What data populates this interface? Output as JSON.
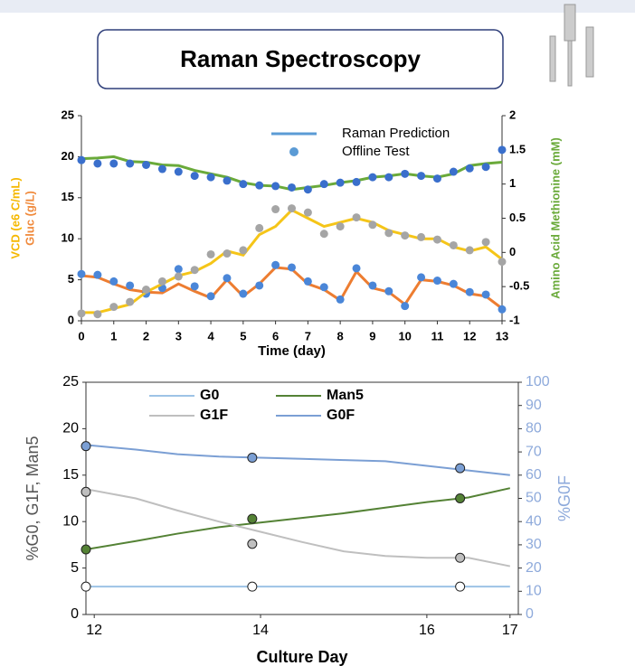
{
  "header": {
    "title": "Raman Spectroscopy"
  },
  "chart_data": [
    {
      "type": "line",
      "xlabel": "Time (day)",
      "ylabel": [
        "VCD (e6 C/mL)",
        "Gluc (g/L)"
      ],
      "ylabel_colors": [
        "#f5b800",
        "#f08a3c"
      ],
      "y2label": "Amino Acid Methionine (mM)",
      "y2label_color": "#6aaa3a",
      "xlim": [
        0,
        13
      ],
      "xticks": [
        0,
        1,
        2,
        3,
        4,
        5,
        6,
        7,
        8,
        9,
        10,
        11,
        12,
        13
      ],
      "ylim": [
        0,
        25
      ],
      "yticks": [
        0,
        5,
        10,
        15,
        20,
        25
      ],
      "y2lim": [
        -1,
        2
      ],
      "y2ticks": [
        -1,
        -0.5,
        0,
        0.5,
        1,
        1.5,
        2
      ],
      "x": [
        0,
        0.5,
        1,
        1.5,
        2,
        2.5,
        3,
        3.5,
        4,
        4.5,
        5,
        5.5,
        6,
        6.5,
        7,
        7.5,
        8,
        8.5,
        9,
        9.5,
        10,
        10.5,
        11,
        11.5,
        12,
        12.5,
        13
      ],
      "legend": [
        {
          "name": "Raman Prediction",
          "color": "#5b9bd5",
          "kind": "line"
        },
        {
          "name": "Offline Test",
          "color": "#5b9bd5",
          "kind": "point"
        }
      ],
      "series": [
        {
          "kind": "line",
          "color": "#ed7d31",
          "values": [
            5.5,
            5.3,
            4.5,
            3.8,
            3.5,
            3.4,
            4.5,
            3.6,
            2.8,
            5,
            3,
            4.5,
            6.5,
            6.3,
            4.5,
            3.8,
            2.5,
            6,
            4,
            3.5,
            2,
            5,
            4.8,
            4.3,
            3.3,
            3,
            1.5
          ]
        },
        {
          "kind": "point",
          "color": "#4a86d8",
          "values": [
            5.7,
            5.6,
            4.8,
            4.3,
            3.3,
            4,
            6.3,
            4.2,
            3,
            5.2,
            3.3,
            4.3,
            6.8,
            6.5,
            4.8,
            4.1,
            2.6,
            6.4,
            4.3,
            3.6,
            1.8,
            5.3,
            4.9,
            4.5,
            3.5,
            3.2,
            1.4
          ]
        },
        {
          "kind": "line",
          "color": "#f5c518",
          "values": [
            1,
            1,
            1.5,
            2,
            3.5,
            4.5,
            5.5,
            6,
            7,
            8.5,
            8,
            10.5,
            11.5,
            13.5,
            12.5,
            11.5,
            12,
            12.5,
            12,
            11,
            10.5,
            10,
            10,
            9,
            8.5,
            9,
            7.5
          ]
        },
        {
          "kind": "point",
          "color": "#a5a5a5",
          "values": [
            0.9,
            0.8,
            1.7,
            2.3,
            3.8,
            4.8,
            5.4,
            6.2,
            8.1,
            8.2,
            8.6,
            11.3,
            13.6,
            13.7,
            13.2,
            10.6,
            11.5,
            12.6,
            11.7,
            10.7,
            10.4,
            10.2,
            9.9,
            9.2,
            8.6,
            9.6,
            7.2
          ]
        },
        {
          "kind": "line",
          "color": "#6aaa3a",
          "axis": "y2",
          "values": [
            1.37,
            1.38,
            1.4,
            1.33,
            1.32,
            1.28,
            1.27,
            1.2,
            1.15,
            1.1,
            1.02,
            0.98,
            0.97,
            0.92,
            0.95,
            0.98,
            1.02,
            1.05,
            1.1,
            1.12,
            1.15,
            1.12,
            1.1,
            1.15,
            1.27,
            1.3,
            1.32
          ]
        },
        {
          "kind": "point",
          "color": "#3a6fcc",
          "axis": "y2",
          "values": [
            1.35,
            1.3,
            1.3,
            1.3,
            1.28,
            1.22,
            1.18,
            1.12,
            1.1,
            1.05,
            1,
            0.98,
            0.97,
            0.95,
            0.92,
            1,
            1.02,
            1.03,
            1.1,
            1.1,
            1.15,
            1.12,
            1.08,
            1.18,
            1.23,
            1.25,
            1.5
          ]
        }
      ]
    },
    {
      "type": "line",
      "xlabel": "Culture Day",
      "ylabel": [
        "%G0, G1F, Man5"
      ],
      "ylabel_colors": [
        "#555555"
      ],
      "y2label": "%G0F",
      "y2label_color": "#8eaadb",
      "xlim": [
        11.9,
        17.1
      ],
      "xticks": [
        12,
        14,
        16,
        17
      ],
      "ylim": [
        0,
        25
      ],
      "yticks": [
        0,
        5,
        10,
        15,
        20,
        25
      ],
      "y2lim": [
        0,
        100
      ],
      "y2ticks": [
        0,
        10,
        20,
        30,
        40,
        50,
        60,
        70,
        80,
        90,
        100
      ],
      "x": [
        11.9,
        12.5,
        13,
        13.5,
        14,
        14.5,
        15,
        15.5,
        16,
        16.5,
        17
      ],
      "marker_x": [
        11.9,
        13.9,
        16.4
      ],
      "series": [
        {
          "name": "G0",
          "kind": "line",
          "color": "#9dc3e6",
          "values": [
            3,
            3,
            3,
            3,
            3,
            3,
            3,
            3,
            3,
            3,
            3
          ],
          "marker_values": [
            3,
            3,
            3
          ]
        },
        {
          "name": "Man5",
          "kind": "line",
          "color": "#548235",
          "values": [
            7,
            7.9,
            8.7,
            9.4,
            9.9,
            10.4,
            10.9,
            11.5,
            12.1,
            12.6,
            13.6
          ],
          "marker_values": [
            7,
            10.3,
            12.5
          ]
        },
        {
          "name": "G1F",
          "kind": "line",
          "color": "#bfbfbf",
          "values": [
            13.5,
            12.5,
            11.2,
            10,
            8.9,
            7.8,
            6.8,
            6.3,
            6.1,
            6.1,
            5.2
          ],
          "marker_values": [
            13.2,
            7.6,
            6.1
          ]
        },
        {
          "name": "G0F",
          "kind": "line",
          "color": "#7b9fd4",
          "axis": "y2",
          "values": [
            73,
            71,
            69,
            68,
            67.5,
            67,
            66.5,
            66,
            64,
            62,
            60
          ],
          "marker_values": [
            72.5,
            67.5,
            63
          ]
        }
      ]
    }
  ]
}
